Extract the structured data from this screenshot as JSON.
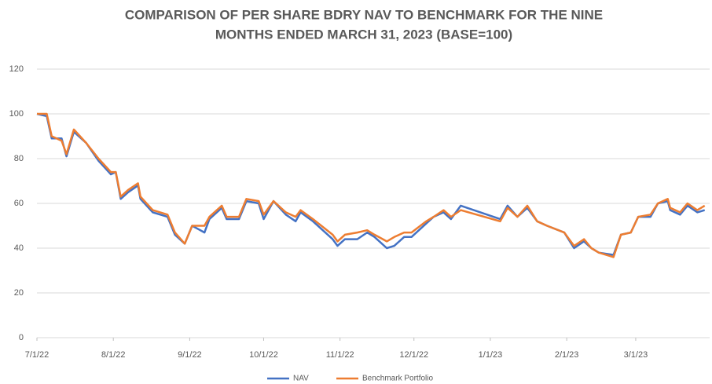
{
  "chart_data": {
    "type": "line",
    "title_lines": [
      "COMPARISON OF PER SHARE BDRY NAV TO BENCHMARK FOR THE NINE",
      "MONTHS ENDED MARCH 31, 2023 (BASE=100)"
    ],
    "x": [
      "7/1/22",
      "7/5/22",
      "7/7/22",
      "7/11/22",
      "7/13/22",
      "7/16/22",
      "7/21/22",
      "7/26/22",
      "7/31/22",
      "8/2/22",
      "8/4/22",
      "8/7/22",
      "8/11/22",
      "8/12/22",
      "8/17/22",
      "8/23/22",
      "8/26/22",
      "8/30/22",
      "9/2/22",
      "9/7/22",
      "9/9/22",
      "9/14/22",
      "9/16/22",
      "9/21/22",
      "9/24/22",
      "9/29/22",
      "10/1/22",
      "10/5/22",
      "10/10/22",
      "10/14/22",
      "10/16/22",
      "10/21/22",
      "10/29/22",
      "10/31/22",
      "11/3/22",
      "11/8/22",
      "11/12/22",
      "11/15/22",
      "11/20/22",
      "11/23/22",
      "11/27/22",
      "11/30/22",
      "12/6/22",
      "12/9/22",
      "12/13/22",
      "12/16/22",
      "12/20/22",
      "1/5/23",
      "1/8/23",
      "1/12/23",
      "1/16/23",
      "1/20/23",
      "1/24/23",
      "1/31/23",
      "2/4/23",
      "2/8/23",
      "2/11/23",
      "2/14/23",
      "2/20/23",
      "2/23/23",
      "2/27/23",
      "3/2/23",
      "3/7/23",
      "3/10/23",
      "3/14/23",
      "3/15/23",
      "3/19/23",
      "3/22/23",
      "3/26/23",
      "3/29/23"
    ],
    "series": [
      {
        "name": "NAV",
        "color": "#4472c4",
        "values": [
          100,
          99,
          89,
          89,
          81,
          92,
          87,
          79,
          73,
          74,
          62,
          65,
          68,
          62,
          56,
          54,
          46,
          42,
          50,
          47,
          53,
          58,
          53,
          53,
          61,
          60,
          53,
          61,
          55,
          52,
          56,
          52,
          44,
          41,
          44,
          44,
          47,
          45,
          40,
          41,
          45,
          45,
          51,
          54,
          56,
          53,
          59,
          53,
          59,
          54,
          58,
          52,
          50,
          47,
          40,
          43,
          40,
          38,
          37,
          46,
          47,
          54,
          54,
          60,
          61,
          57,
          55,
          59,
          56,
          57
        ]
      },
      {
        "name": "Benchmark Portfolio",
        "color": "#ed7d31",
        "values": [
          100,
          100,
          90,
          88,
          82,
          93,
          87,
          80,
          74,
          74,
          63,
          66,
          69,
          63,
          57,
          55,
          47,
          42,
          50,
          50,
          54,
          59,
          54,
          54,
          62,
          61,
          55,
          61,
          56,
          54,
          57,
          53,
          46,
          43,
          46,
          47,
          48,
          46,
          43,
          45,
          47,
          47,
          52,
          54,
          57,
          54,
          57,
          52,
          58,
          54,
          59,
          52,
          50,
          47,
          41,
          44,
          40,
          38,
          36,
          46,
          47,
          54,
          55,
          60,
          62,
          58,
          56,
          60,
          57,
          59
        ]
      }
    ],
    "xlim": [
      "7/1/22",
      "3/31/23"
    ],
    "xticks": [
      "7/1/22",
      "8/1/22",
      "9/1/22",
      "10/1/22",
      "11/1/22",
      "12/1/22",
      "1/1/23",
      "2/1/23",
      "3/1/23"
    ],
    "ylim": [
      0,
      120
    ],
    "yticks": [
      0,
      20,
      40,
      60,
      80,
      100,
      120
    ],
    "grid": true
  }
}
